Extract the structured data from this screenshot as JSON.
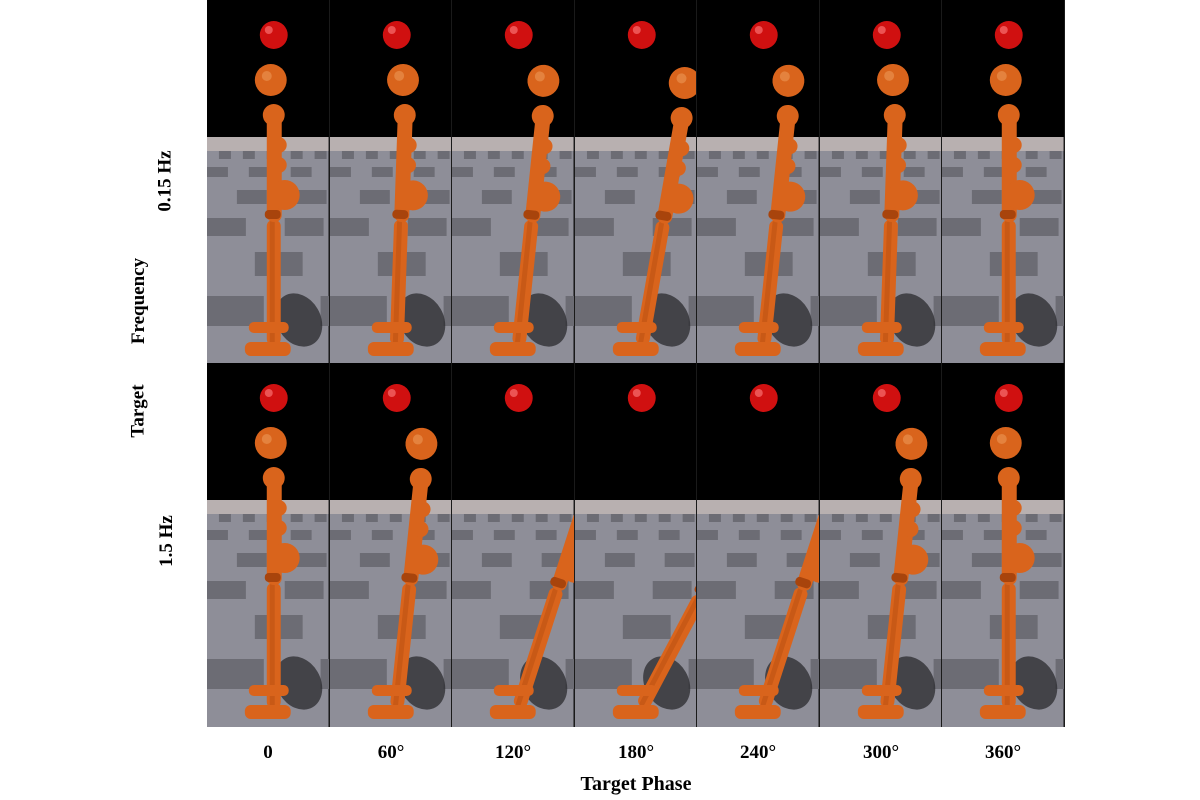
{
  "rows": [
    {
      "label": "0.15 Hz",
      "lean": [
        0,
        2,
        6,
        10,
        6,
        2,
        0
      ]
    },
    {
      "label": "1.5 Hz",
      "lean": [
        0,
        6,
        18,
        28,
        18,
        6,
        0
      ]
    }
  ],
  "columns": [
    "0",
    "60°",
    "120°",
    "180°",
    "240°",
    "300°",
    "360°"
  ],
  "y_axis_label": {
    "word1": "Target",
    "word2": "Frequency"
  },
  "x_axis_label": "Target Phase",
  "colors": {
    "sky": "#000000",
    "floor_light": "#8e8e98",
    "floor_dark": "#6c6c74",
    "horizon": "#b8b0b0",
    "body": "#d9641c",
    "body_shade": "#a8440c",
    "target_ball": "#d01010"
  }
}
